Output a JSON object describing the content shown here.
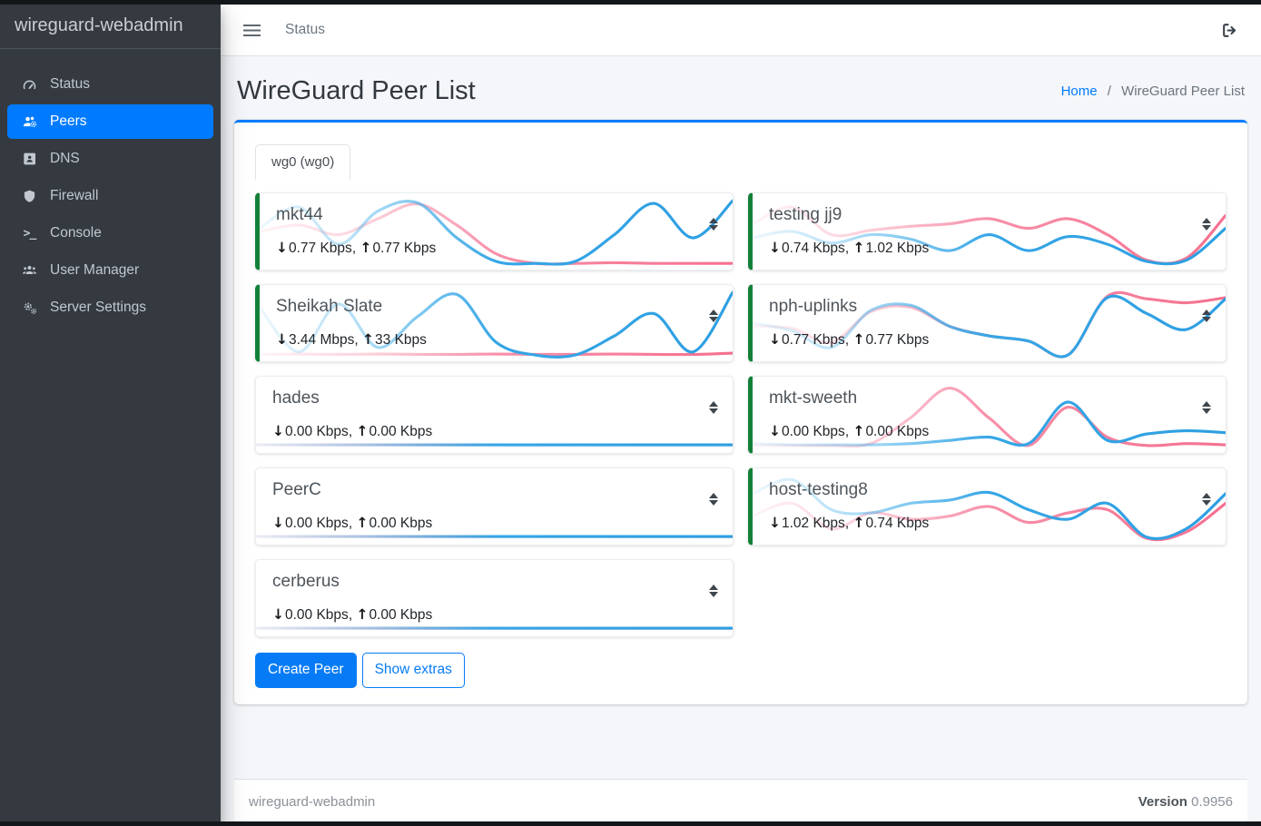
{
  "app": {
    "brand": "wireguard-webadmin"
  },
  "topbar": {
    "nav_link": "Status"
  },
  "sidebar": {
    "items": [
      {
        "label": "Status",
        "icon": "gauge-icon",
        "active": false
      },
      {
        "label": "Peers",
        "icon": "users-gear-icon",
        "active": true
      },
      {
        "label": "DNS",
        "icon": "address-book-icon",
        "active": false
      },
      {
        "label": "Firewall",
        "icon": "shield-icon",
        "active": false
      },
      {
        "label": "Console",
        "icon": "terminal-icon",
        "active": false
      },
      {
        "label": "User Manager",
        "icon": "users-icon",
        "active": false
      },
      {
        "label": "Server Settings",
        "icon": "gears-icon",
        "active": false
      }
    ]
  },
  "page": {
    "title": "WireGuard Peer List",
    "breadcrumb": {
      "home": "Home",
      "separator": "/",
      "current": "WireGuard Peer List"
    }
  },
  "tabs": [
    {
      "label": "wg0 (wg0)",
      "active": true
    }
  ],
  "labels": {
    "stats_separator": ", "
  },
  "icons": {
    "down_arrow": "↓",
    "up_arrow": "↑",
    "sort": "sort-icon",
    "logout": "sign-out-icon",
    "menu": "hamburger-icon"
  },
  "buttons": {
    "create_peer": "Create Peer",
    "show_extras": "Show extras"
  },
  "footer": {
    "brand": "wireguard-webadmin",
    "version_label": "Version",
    "version_value": "0.9956"
  },
  "colors": {
    "primary": "#007bff",
    "online_accent": "#128039",
    "spark_rx": "#3aa9e8",
    "spark_tx": "#f78fa8",
    "sidebar_bg": "#343a40",
    "content_bg": "#f4f6f9"
  },
  "peers": [
    {
      "name": "mkt44",
      "download": "0.77 Kbps",
      "upload": "0.77 Kbps",
      "online": true,
      "col": 0,
      "spark_rx": [
        0.45,
        0.12,
        0.7,
        0.18,
        0.05,
        0.6,
        0.97,
        1,
        0.97,
        0.55,
        0.06,
        0.6,
        0.02
      ],
      "spark_tx": [
        0.5,
        0.4,
        0.55,
        0.3,
        0.07,
        0.4,
        0.85,
        1,
        1,
        0.99,
        1,
        1,
        1
      ]
    },
    {
      "name": "testing jj9",
      "download": "0.74 Kbps",
      "upload": "1.02 Kbps",
      "online": true,
      "col": 1,
      "spark_rx": [
        0.6,
        0.5,
        0.68,
        0.55,
        0.62,
        0.8,
        0.55,
        0.8,
        0.58,
        0.7,
        0.97,
        0.95,
        0.45
      ],
      "spark_tx": [
        0.38,
        0.12,
        0.55,
        0.48,
        0.42,
        0.38,
        0.3,
        0.45,
        0.3,
        0.55,
        0.95,
        0.92,
        0.25
      ]
    },
    {
      "name": "Sheikah Slate",
      "download": "3.44 Mbps",
      "upload": "33 Kbps",
      "online": true,
      "col": 0,
      "spark_rx": [
        0.25,
        0.95,
        0.2,
        0.88,
        0.4,
        0.05,
        0.8,
        1,
        1,
        0.7,
        0.35,
        0.95,
        0.02
      ],
      "spark_tx": [
        0.99,
        0.985,
        0.99,
        0.985,
        0.99,
        0.99,
        0.985,
        0.99,
        0.99,
        0.985,
        0.99,
        0.99,
        0.97
      ]
    },
    {
      "name": "nph-uplinks",
      "download": "0.77 Kbps",
      "upload": "0.77 Kbps",
      "online": true,
      "col": 1,
      "spark_rx": [
        0.5,
        0.62,
        0.88,
        0.3,
        0.22,
        0.55,
        0.7,
        0.78,
        1,
        0.1,
        0.35,
        0.6,
        0.12
      ],
      "spark_tx": [
        0.55,
        0.58,
        0.8,
        0.32,
        0.25,
        0.55,
        0.7,
        0.78,
        1,
        0.08,
        0.12,
        0.18,
        0.1
      ]
    },
    {
      "name": "hades",
      "download": "0.00 Kbps",
      "upload": "0.00 Kbps",
      "online": false,
      "col": 0,
      "spark_rx": [
        0.97,
        0.97,
        0.97,
        0.97,
        0.97,
        0.97,
        0.97,
        0.97,
        0.97,
        0.97,
        0.97,
        0.97,
        0.97
      ],
      "spark_tx": [
        0.97,
        0.97,
        0.97,
        0.97,
        0.97,
        0.97,
        0.97,
        0.97,
        0.97,
        0.97,
        0.97,
        0.97,
        0.97
      ]
    },
    {
      "name": "mkt-sweeth",
      "download": "0.00 Kbps",
      "upload": "0.00 Kbps",
      "online": true,
      "col": 1,
      "spark_rx": [
        0.95,
        0.97,
        0.97,
        0.97,
        0.95,
        0.9,
        0.85,
        0.95,
        0.3,
        0.9,
        0.8,
        0.75,
        0.78
      ],
      "spark_tx": [
        0.98,
        0.98,
        0.98,
        0.95,
        0.55,
        0.08,
        0.55,
        0.98,
        0.38,
        0.85,
        0.98,
        0.95,
        0.97
      ]
    },
    {
      "name": "PeerC",
      "download": "0.00 Kbps",
      "upload": "0.00 Kbps",
      "online": false,
      "col": 0,
      "spark_rx": [
        0.97,
        0.97,
        0.97,
        0.97,
        0.97,
        0.97,
        0.97,
        0.97,
        0.97,
        0.97,
        0.97,
        0.97,
        0.97
      ],
      "spark_tx": [
        0.97,
        0.97,
        0.97,
        0.97,
        0.97,
        0.97,
        0.97,
        0.97,
        0.97,
        0.97,
        0.97,
        0.97,
        0.97
      ]
    },
    {
      "name": "host-testing8",
      "download": "1.02 Kbps",
      "upload": "0.74 Kbps",
      "online": true,
      "col": 1,
      "spark_rx": [
        0.3,
        0.08,
        0.55,
        0.6,
        0.45,
        0.4,
        0.28,
        0.55,
        0.7,
        0.45,
        0.98,
        0.85,
        0.3
      ],
      "spark_tx": [
        0.65,
        0.45,
        0.85,
        0.6,
        0.7,
        0.65,
        0.5,
        0.75,
        0.6,
        0.55,
        1,
        0.9,
        0.45
      ]
    },
    {
      "name": "cerberus",
      "download": "0.00 Kbps",
      "upload": "0.00 Kbps",
      "online": false,
      "col": 0,
      "spark_rx": [
        0.97,
        0.97,
        0.97,
        0.97,
        0.97,
        0.97,
        0.97,
        0.97,
        0.97,
        0.97,
        0.97,
        0.97,
        0.97
      ],
      "spark_tx": [
        0.97,
        0.97,
        0.97,
        0.97,
        0.97,
        0.97,
        0.97,
        0.97,
        0.97,
        0.97,
        0.97,
        0.97,
        0.97
      ]
    }
  ]
}
